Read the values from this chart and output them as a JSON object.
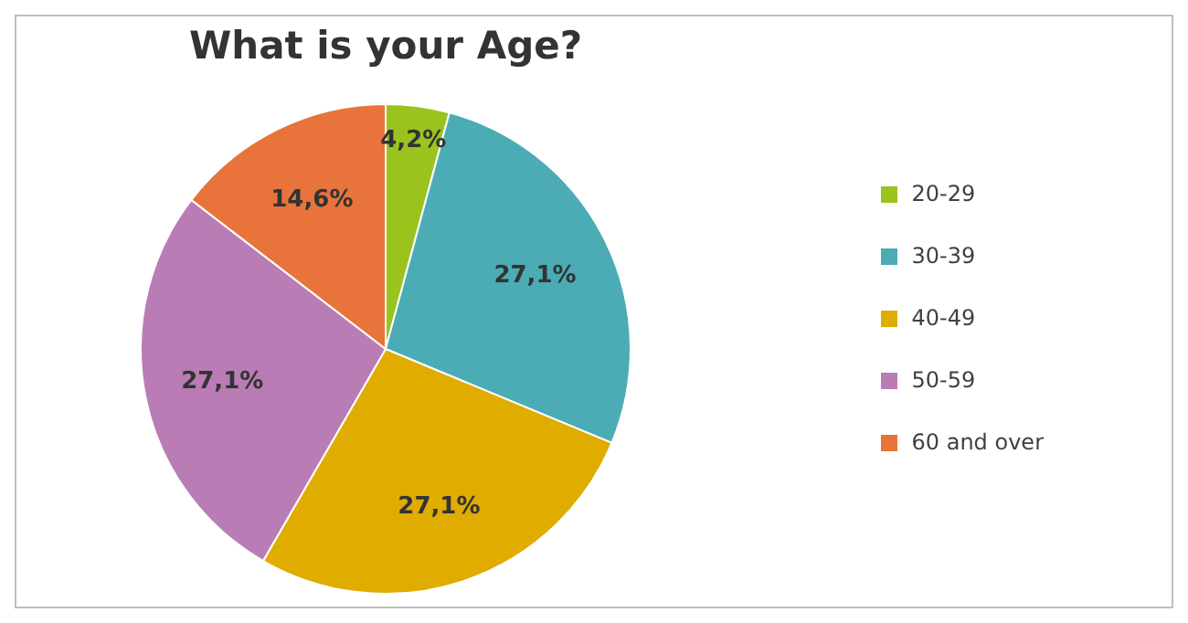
{
  "chart_data": {
    "type": "pie",
    "title": "What is your Age?",
    "categories": [
      "20-29",
      "30-39",
      "40-49",
      "50-59",
      "60 and over"
    ],
    "values": [
      4.2,
      27.1,
      27.1,
      27.1,
      14.6
    ],
    "value_labels": [
      "4,2%",
      "27,1%",
      "27,1%",
      "27,1%",
      "14,6%"
    ],
    "colors": [
      "#9bc31e",
      "#4bacb6",
      "#e0ac00",
      "#b97cb5",
      "#e8743b"
    ],
    "legend": "right"
  }
}
